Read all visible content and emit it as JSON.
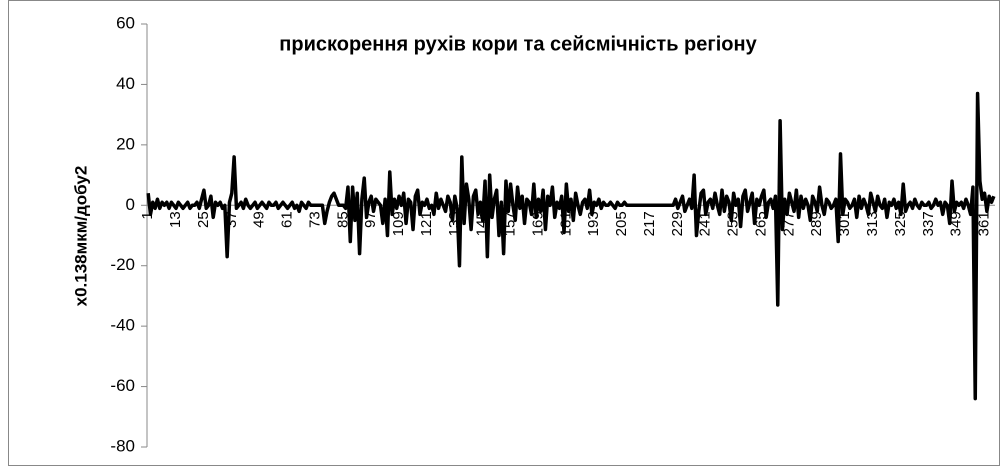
{
  "chart_data": {
    "type": "line",
    "title": "прискорення рухів кори та сейсмічність регіону",
    "y_label": "x0.138мкм/добу2",
    "color": "#000000",
    "ylim": [
      -80,
      60
    ],
    "yticks": [
      -80,
      -60,
      -40,
      -20,
      0,
      20,
      40,
      60
    ],
    "categories": [
      1,
      null,
      null,
      null,
      null,
      null,
      null,
      null,
      null,
      null,
      null,
      null,
      13,
      null,
      null,
      null,
      null,
      null,
      null,
      null,
      null,
      null,
      null,
      null,
      25,
      null,
      null,
      null,
      null,
      null,
      null,
      null,
      null,
      null,
      null,
      null,
      37,
      null,
      null,
      null,
      null,
      null,
      null,
      null,
      null,
      null,
      null,
      null,
      49,
      null,
      null,
      null,
      null,
      null,
      null,
      null,
      null,
      null,
      null,
      null,
      61,
      null,
      null,
      null,
      null,
      null,
      null,
      null,
      null,
      null,
      null,
      null,
      73,
      null,
      null,
      null,
      null,
      null,
      null,
      null,
      null,
      null,
      null,
      null,
      85,
      null,
      null,
      null,
      null,
      null,
      null,
      null,
      null,
      null,
      null,
      null,
      97,
      null,
      null,
      null,
      null,
      null,
      null,
      null,
      null,
      null,
      null,
      null,
      109,
      null,
      null,
      null,
      null,
      null,
      null,
      null,
      null,
      null,
      null,
      null,
      121,
      null,
      null,
      null,
      null,
      null,
      null,
      null,
      null,
      null,
      null,
      null,
      133,
      null,
      null,
      null,
      null,
      null,
      null,
      null,
      null,
      null,
      null,
      null,
      145,
      null,
      null,
      null,
      null,
      null,
      null,
      null,
      null,
      null,
      null,
      null,
      157,
      null,
      null,
      null,
      null,
      null,
      null,
      null,
      null,
      null,
      null,
      null,
      169,
      null,
      null,
      null,
      null,
      null,
      null,
      null,
      null,
      null,
      null,
      null,
      181,
      null,
      null,
      null,
      null,
      null,
      null,
      null,
      null,
      null,
      null,
      null,
      193,
      null,
      null,
      null,
      null,
      null,
      null,
      null,
      null,
      null,
      null,
      null,
      205,
      null,
      null,
      null,
      null,
      null,
      null,
      null,
      null,
      null,
      null,
      null,
      217,
      null,
      null,
      null,
      null,
      null,
      null,
      null,
      null,
      null,
      null,
      null,
      229,
      null,
      null,
      null,
      null,
      null,
      null,
      null,
      null,
      null,
      null,
      null,
      241,
      null,
      null,
      null,
      null,
      null,
      null,
      null,
      null,
      null,
      null,
      null,
      253,
      null,
      null,
      null,
      null,
      null,
      null,
      null,
      null,
      null,
      null,
      null,
      265,
      null,
      null,
      null,
      null,
      null,
      null,
      null,
      null,
      null,
      null,
      null,
      277,
      null,
      null,
      null,
      null,
      null,
      null,
      null,
      null,
      null,
      null,
      null,
      289,
      null,
      null,
      null,
      null,
      null,
      null,
      null,
      null,
      null,
      null,
      null,
      301,
      null,
      null,
      null,
      null,
      null,
      null,
      null,
      null,
      null,
      null,
      null,
      313,
      null,
      null,
      null,
      null,
      null,
      null,
      null,
      null,
      null,
      null,
      null,
      325,
      null,
      null,
      null,
      null,
      null,
      null,
      null,
      null,
      null,
      null,
      null,
      337,
      null,
      null,
      null,
      null,
      null,
      null,
      null,
      null,
      null,
      null,
      null,
      349,
      null,
      null,
      null,
      null,
      null,
      null,
      null,
      null,
      null,
      null,
      null,
      361,
      null,
      null,
      null,
      null
    ],
    "values": [
      4,
      -3,
      1,
      -1,
      2,
      -1,
      1,
      0,
      1,
      -1,
      1,
      0,
      -1,
      1,
      0,
      -1,
      0,
      1,
      -1,
      0,
      0,
      1,
      -1,
      2,
      5,
      -1,
      0,
      3,
      -4,
      1,
      0,
      1,
      -1,
      0,
      -17,
      1,
      4,
      16,
      -1,
      0,
      1,
      -1,
      2,
      0,
      -1,
      0,
      1,
      -1,
      0,
      1,
      0,
      -1,
      1,
      0,
      0,
      1,
      -1,
      0,
      1,
      0,
      -1,
      0,
      1,
      -1,
      0,
      -2,
      1,
      0,
      -1,
      1,
      0,
      0,
      0,
      0,
      0,
      0,
      -6,
      -2,
      1,
      3,
      4,
      2,
      0,
      0,
      0,
      -1,
      6,
      -12,
      6,
      -5,
      4,
      -16,
      2,
      9,
      -4,
      1,
      3,
      -2,
      2,
      1,
      0,
      -6,
      2,
      -10,
      11,
      -3,
      2,
      -1,
      3,
      0,
      4,
      -6,
      2,
      1,
      -8,
      3,
      5,
      -3,
      1,
      0,
      2,
      -1,
      0,
      -3,
      4,
      -1,
      2,
      0,
      -2,
      3,
      1,
      -5,
      3,
      -1,
      -20,
      16,
      -6,
      7,
      2,
      -8,
      3,
      5,
      -3,
      1,
      -5,
      8,
      -17,
      10,
      -4,
      2,
      5,
      -10,
      1,
      -16,
      8,
      -2,
      7,
      0,
      -5,
      6,
      -1,
      3,
      -6,
      2,
      1,
      -3,
      7,
      -4,
      2,
      -2,
      5,
      -8,
      3,
      0,
      6,
      -4,
      1,
      -1,
      3,
      -9,
      7,
      -2,
      2,
      -5,
      4,
      0,
      -3,
      1,
      2,
      -1,
      5,
      -3,
      1,
      0,
      2,
      -1,
      1,
      0,
      0,
      1,
      0,
      -1,
      1,
      0,
      0,
      1,
      0,
      0,
      0,
      0,
      0,
      0,
      0,
      0,
      0,
      0,
      0,
      0,
      0,
      0,
      0,
      0,
      0,
      0,
      0,
      0,
      0,
      2,
      -1,
      1,
      3,
      -2,
      0,
      2,
      -1,
      10,
      -10,
      -2,
      4,
      5,
      -3,
      1,
      2,
      -1,
      4,
      0,
      -3,
      5,
      -2,
      3,
      1,
      -5,
      4,
      0,
      2,
      -7,
      3,
      5,
      -2,
      1,
      4,
      -6,
      2,
      0,
      3,
      5,
      -4,
      1,
      2,
      -1,
      3,
      -33,
      28,
      -8,
      2,
      -3,
      4,
      1,
      -2,
      5,
      -4,
      3,
      -1,
      2,
      0,
      -5,
      3,
      1,
      -2,
      6,
      0,
      -3,
      2,
      1,
      -1,
      0,
      2,
      -12,
      17,
      -3,
      2,
      1,
      -1,
      0,
      2,
      -4,
      3,
      -1,
      2,
      0,
      -3,
      4,
      1,
      -2,
      3,
      0,
      -1,
      2,
      -4,
      1,
      0,
      2,
      -1,
      1,
      -3,
      7,
      -2,
      0,
      1,
      -1,
      2,
      0,
      -1,
      1,
      0,
      0,
      1,
      -1,
      0,
      2,
      0,
      1,
      -3,
      1,
      0,
      -6,
      8,
      -2,
      1,
      0,
      1,
      -1,
      2,
      0,
      -3,
      6,
      -64,
      37,
      8,
      2,
      4,
      -2,
      3,
      1,
      3
    ]
  }
}
